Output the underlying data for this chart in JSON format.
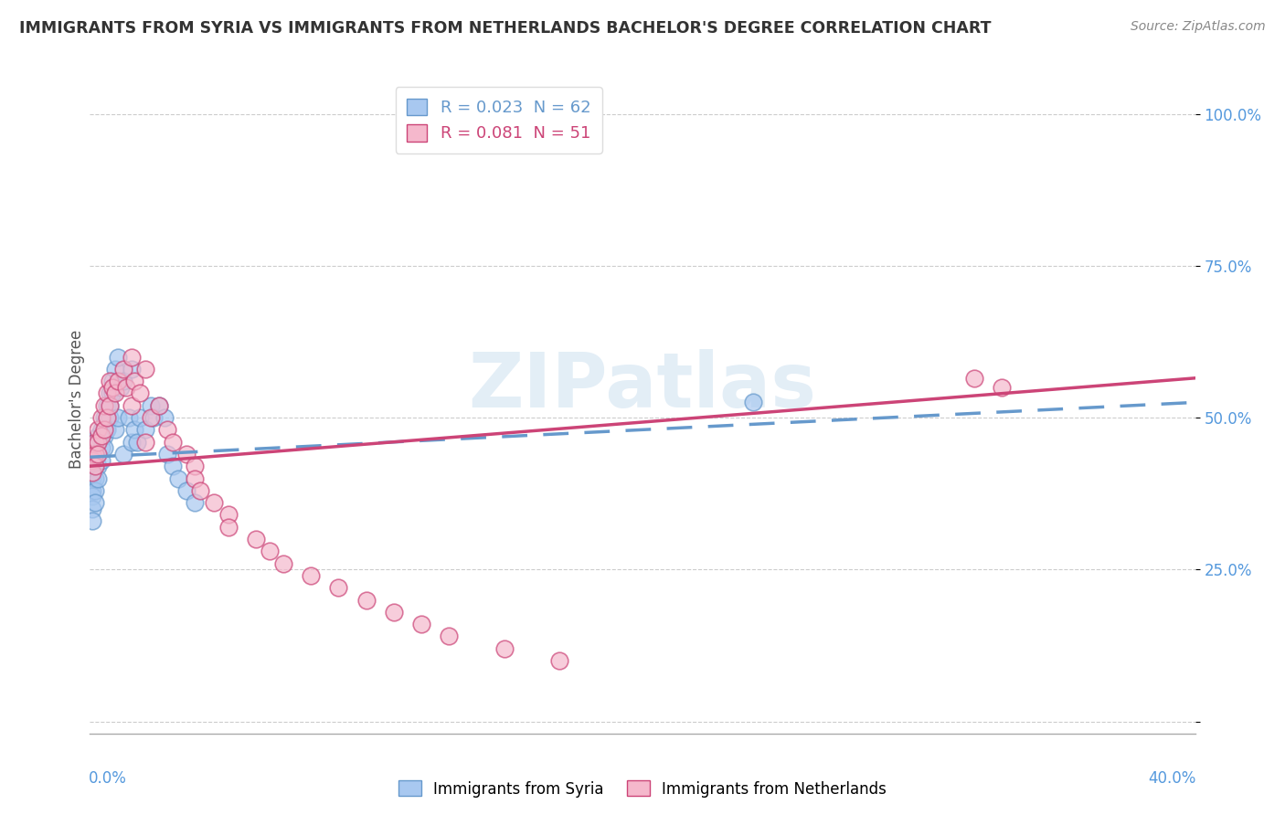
{
  "title": "IMMIGRANTS FROM SYRIA VS IMMIGRANTS FROM NETHERLANDS BACHELOR'S DEGREE CORRELATION CHART",
  "source": "Source: ZipAtlas.com",
  "ylabel": "Bachelor's Degree",
  "ytick_values": [
    0.0,
    0.25,
    0.5,
    0.75,
    1.0
  ],
  "ytick_labels": [
    "",
    "25.0%",
    "50.0%",
    "75.0%",
    "100.0%"
  ],
  "xlim": [
    0.0,
    0.4
  ],
  "ylim": [
    -0.02,
    1.08
  ],
  "color_syria": "#a8c8f0",
  "color_netherlands": "#f5b8cc",
  "trendline_syria_color": "#6699cc",
  "trendline_netherlands_color": "#cc4477",
  "background_color": "#ffffff",
  "watermark": "ZIPatlas",
  "syria_trendline": [
    0.0,
    0.4,
    0.435,
    0.525
  ],
  "netherlands_trendline": [
    0.0,
    0.4,
    0.42,
    0.565
  ],
  "syria_x": [
    0.001,
    0.001,
    0.001,
    0.001,
    0.001,
    0.001,
    0.001,
    0.001,
    0.001,
    0.001,
    0.002,
    0.002,
    0.002,
    0.002,
    0.002,
    0.002,
    0.002,
    0.003,
    0.003,
    0.003,
    0.003,
    0.003,
    0.004,
    0.004,
    0.004,
    0.004,
    0.005,
    0.005,
    0.005,
    0.005,
    0.006,
    0.006,
    0.006,
    0.007,
    0.007,
    0.007,
    0.008,
    0.008,
    0.009,
    0.009,
    0.01,
    0.01,
    0.011,
    0.012,
    0.012,
    0.014,
    0.015,
    0.015,
    0.016,
    0.017,
    0.018,
    0.02,
    0.022,
    0.023,
    0.025,
    0.027,
    0.028,
    0.03,
    0.032,
    0.035,
    0.038,
    0.24
  ],
  "syria_y": [
    0.44,
    0.43,
    0.42,
    0.41,
    0.4,
    0.39,
    0.38,
    0.37,
    0.35,
    0.33,
    0.46,
    0.45,
    0.44,
    0.42,
    0.4,
    0.38,
    0.36,
    0.47,
    0.46,
    0.44,
    0.42,
    0.4,
    0.48,
    0.47,
    0.45,
    0.43,
    0.5,
    0.49,
    0.47,
    0.45,
    0.52,
    0.5,
    0.48,
    0.54,
    0.52,
    0.5,
    0.56,
    0.54,
    0.58,
    0.48,
    0.6,
    0.5,
    0.55,
    0.56,
    0.44,
    0.5,
    0.58,
    0.46,
    0.48,
    0.46,
    0.5,
    0.48,
    0.52,
    0.5,
    0.52,
    0.5,
    0.44,
    0.42,
    0.4,
    0.38,
    0.36,
    0.525
  ],
  "netherlands_x": [
    0.001,
    0.001,
    0.001,
    0.002,
    0.002,
    0.002,
    0.003,
    0.003,
    0.003,
    0.004,
    0.004,
    0.005,
    0.005,
    0.006,
    0.006,
    0.007,
    0.007,
    0.008,
    0.009,
    0.01,
    0.012,
    0.013,
    0.015,
    0.015,
    0.016,
    0.018,
    0.02,
    0.02,
    0.022,
    0.025,
    0.028,
    0.03,
    0.035,
    0.038,
    0.038,
    0.04,
    0.045,
    0.05,
    0.05,
    0.06,
    0.065,
    0.07,
    0.08,
    0.09,
    0.1,
    0.11,
    0.12,
    0.13,
    0.15,
    0.17,
    0.32,
    0.33
  ],
  "netherlands_y": [
    0.44,
    0.43,
    0.41,
    0.46,
    0.44,
    0.42,
    0.48,
    0.46,
    0.44,
    0.5,
    0.47,
    0.52,
    0.48,
    0.54,
    0.5,
    0.56,
    0.52,
    0.55,
    0.54,
    0.56,
    0.58,
    0.55,
    0.6,
    0.52,
    0.56,
    0.54,
    0.58,
    0.46,
    0.5,
    0.52,
    0.48,
    0.46,
    0.44,
    0.42,
    0.4,
    0.38,
    0.36,
    0.34,
    0.32,
    0.3,
    0.28,
    0.26,
    0.24,
    0.22,
    0.2,
    0.18,
    0.16,
    0.14,
    0.12,
    0.1,
    0.565,
    0.55
  ]
}
